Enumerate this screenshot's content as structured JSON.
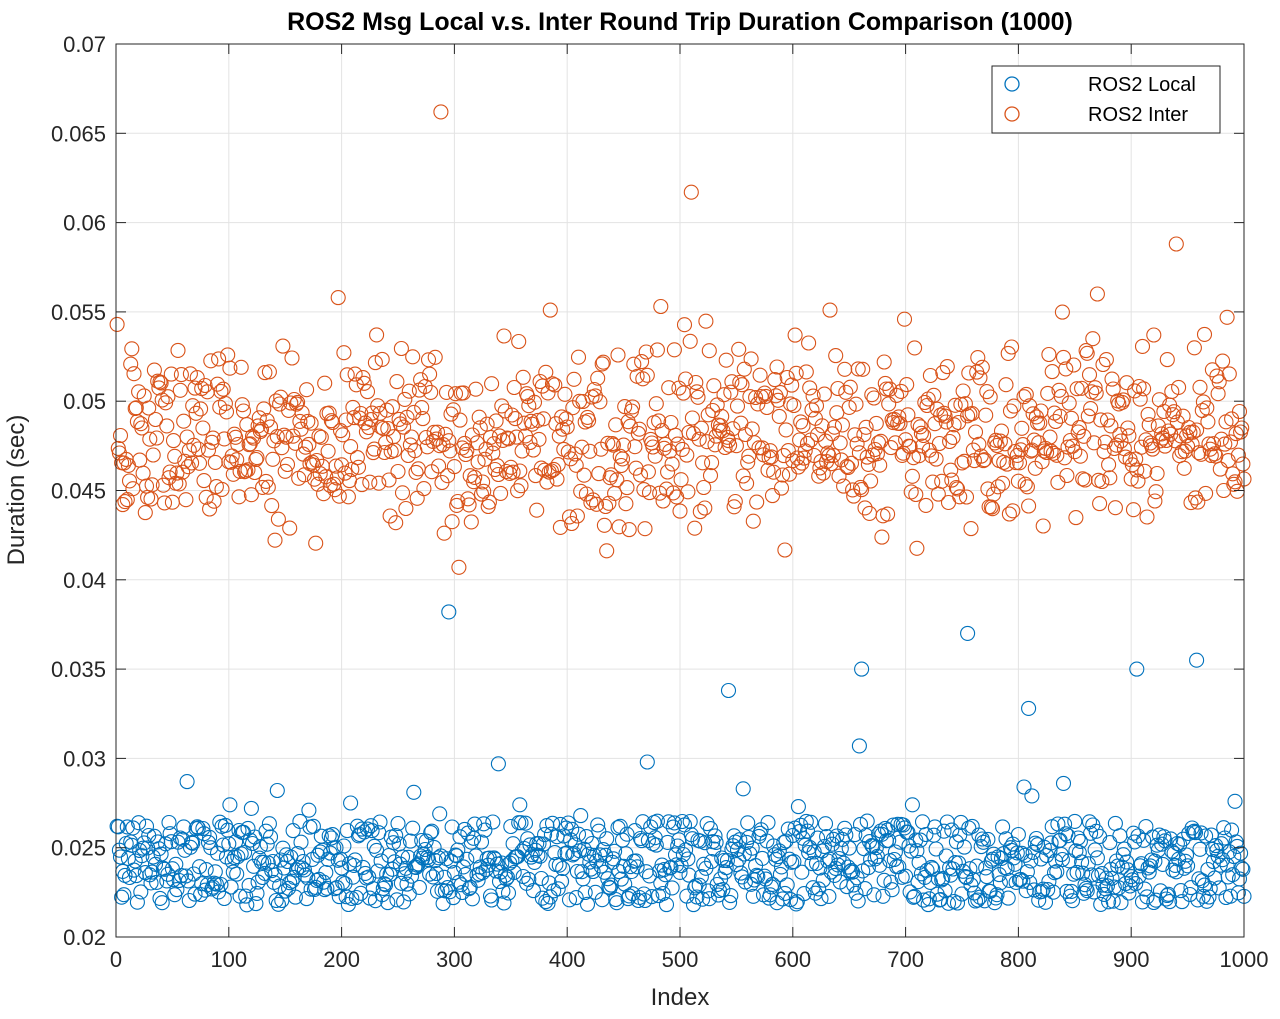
{
  "chart_data": {
    "type": "scatter",
    "title": "ROS2 Msg Local v.s. Inter Round Trip Duration Comparison (1000)",
    "xlabel": "Index",
    "ylabel": "Duration (sec)",
    "xlim": [
      0,
      1000
    ],
    "ylim": [
      0.02,
      0.07
    ],
    "xticks": [
      "0",
      "100",
      "200",
      "300",
      "400",
      "500",
      "600",
      "700",
      "800",
      "900",
      "1000"
    ],
    "yticks": [
      "0.02",
      "0.025",
      "0.03",
      "0.035",
      "0.04",
      "0.045",
      "0.05",
      "0.055",
      "0.06",
      "0.065",
      "0.07"
    ],
    "grid": true,
    "legend": "top-right",
    "marker": "open-circle",
    "series": [
      {
        "name": "ROS2 Local",
        "color": "#0072BD",
        "typical_range": [
          0.0218,
          0.0265
        ],
        "points": [
          [
            1,
            0.0262
          ],
          [
            63,
            0.0287
          ],
          [
            101,
            0.0274
          ],
          [
            120,
            0.0272
          ],
          [
            143,
            0.0282
          ],
          [
            171,
            0.0271
          ],
          [
            208,
            0.0275
          ],
          [
            264,
            0.0281
          ],
          [
            287,
            0.0269
          ],
          [
            295,
            0.0382
          ],
          [
            339,
            0.0297
          ],
          [
            358,
            0.0274
          ],
          [
            412,
            0.0268
          ],
          [
            471,
            0.0298
          ],
          [
            543,
            0.0338
          ],
          [
            556,
            0.0283
          ],
          [
            605,
            0.0273
          ],
          [
            659,
            0.0307
          ],
          [
            661,
            0.035
          ],
          [
            706,
            0.0274
          ],
          [
            755,
            0.037
          ],
          [
            805,
            0.0284
          ],
          [
            809,
            0.0328
          ],
          [
            812,
            0.0279
          ],
          [
            840,
            0.0286
          ],
          [
            905,
            0.035
          ],
          [
            958,
            0.0355
          ],
          [
            992,
            0.0276
          ]
        ]
      },
      {
        "name": "ROS2 Inter",
        "color": "#D95319",
        "typical_range": [
          0.0407,
          0.0555
        ],
        "points": [
          [
            1,
            0.0543
          ],
          [
            197,
            0.0558
          ],
          [
            288,
            0.0662
          ],
          [
            304,
            0.0407
          ],
          [
            385,
            0.0551
          ],
          [
            483,
            0.0553
          ],
          [
            510,
            0.0617
          ],
          [
            633,
            0.0551
          ],
          [
            870,
            0.056
          ],
          [
            940,
            0.0588
          ],
          [
            985,
            0.0547
          ]
        ]
      }
    ]
  }
}
